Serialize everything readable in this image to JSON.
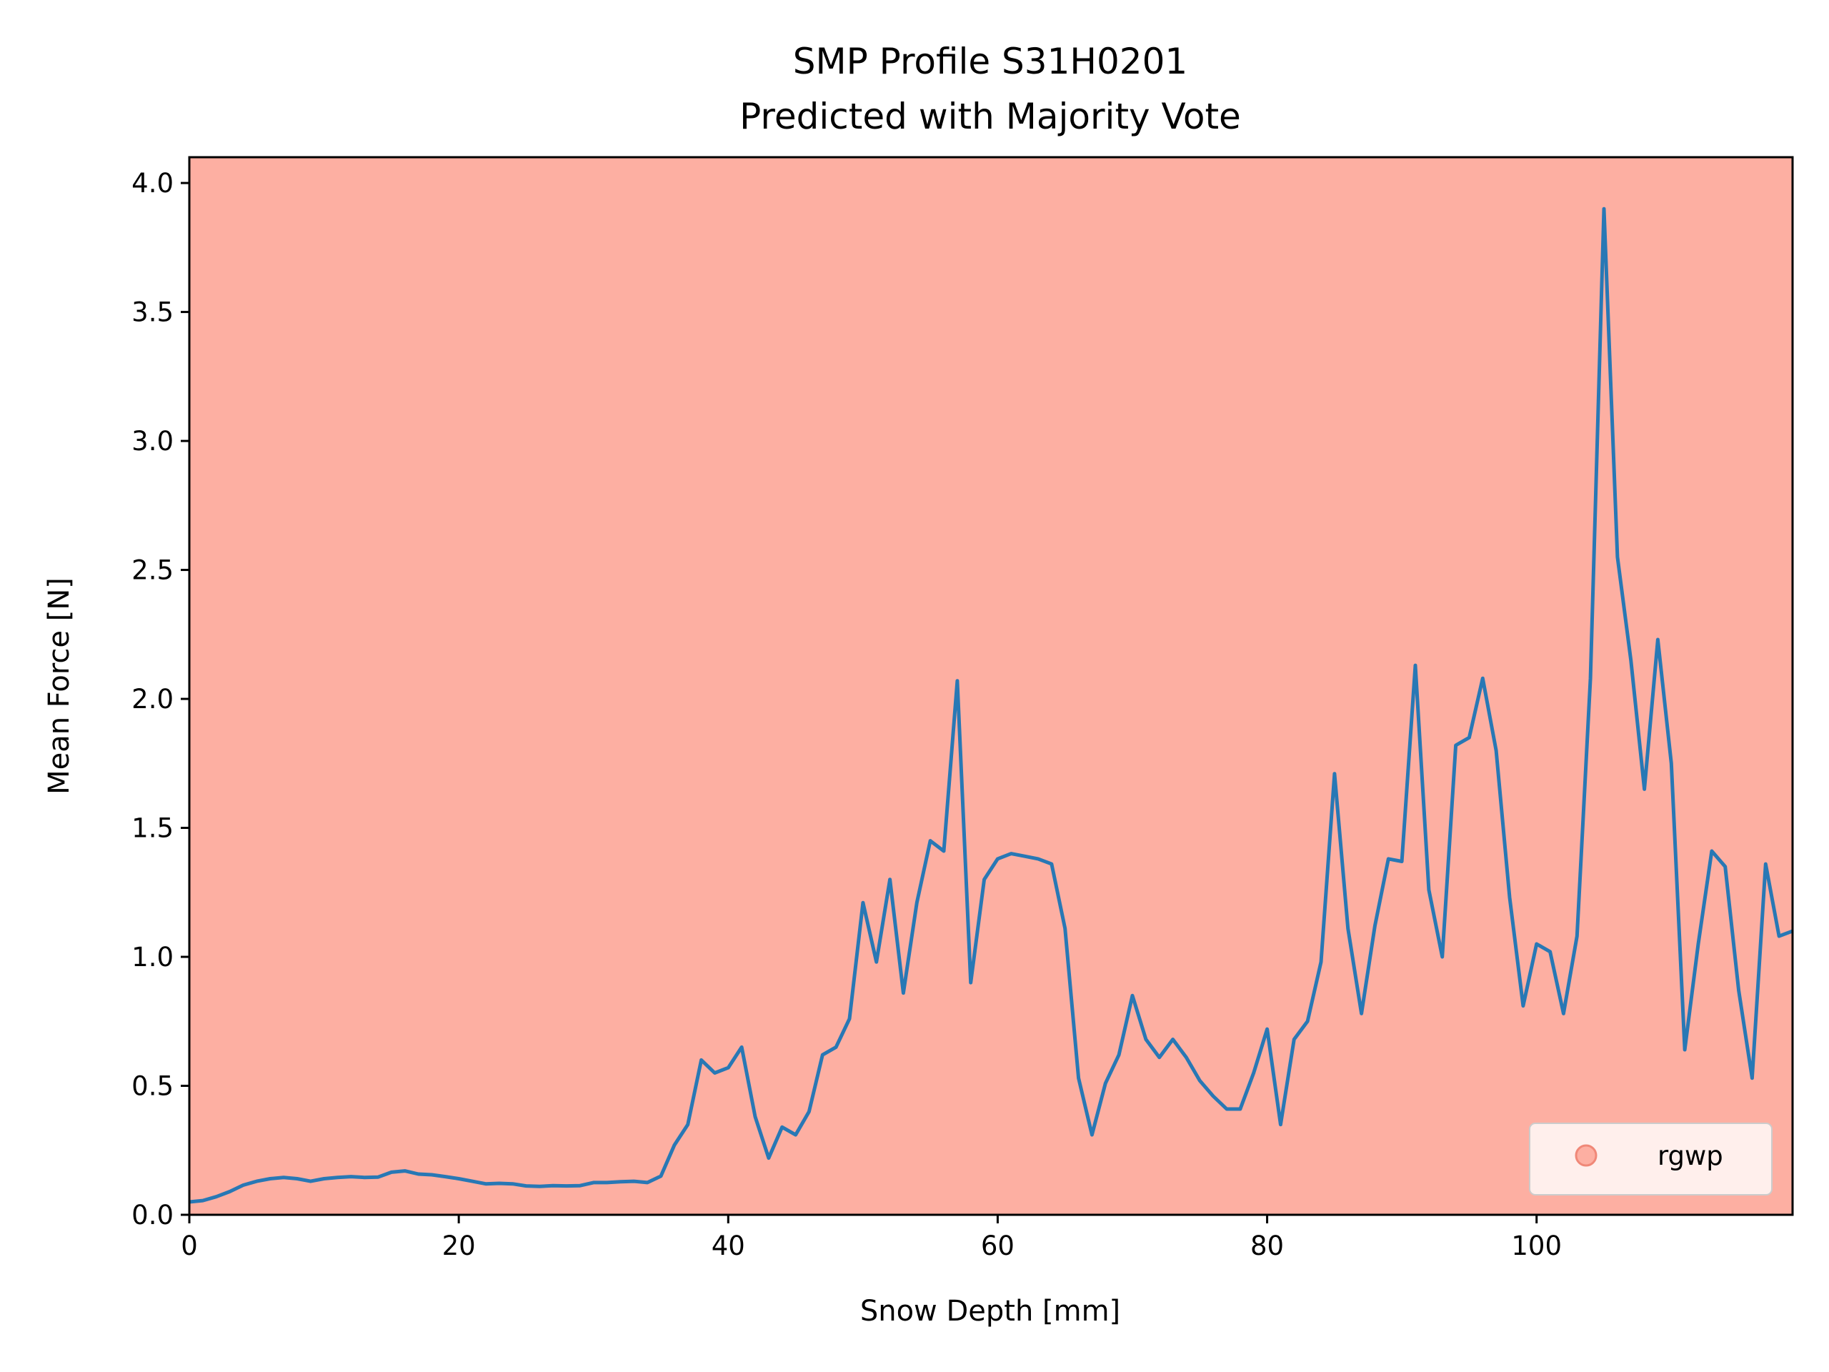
{
  "chart_data": {
    "type": "line",
    "title": "SMP Profile S31H0201",
    "subtitle": "Predicted with Majority Vote",
    "xlabel": "Snow Depth [mm]",
    "ylabel": "Mean Force [N]",
    "xlim": [
      0,
      119
    ],
    "ylim": [
      0,
      4.1
    ],
    "xticks": [
      0,
      20,
      40,
      60,
      80,
      100
    ],
    "xtick_labels": [
      "0",
      "20",
      "40",
      "60",
      "80",
      "100"
    ],
    "yticks": [
      0,
      0.5,
      1.0,
      1.5,
      2.0,
      2.5,
      3.0,
      3.5,
      4.0
    ],
    "ytick_labels": [
      "0.0",
      "0.5",
      "1.0",
      "1.5",
      "2.0",
      "2.5",
      "3.0",
      "3.5",
      "4.0"
    ],
    "grid": false,
    "background_fill": {
      "label": "rgwp",
      "color": "#fdafa2",
      "x_range": [
        0,
        119
      ]
    },
    "legend": {
      "placement": "lower-right",
      "entries": [
        {
          "label": "rgwp",
          "color": "#fdafa2",
          "marker": "circle"
        }
      ]
    },
    "series": [
      {
        "color": "#2878b5",
        "x": [
          0,
          1,
          2,
          3,
          4,
          5,
          6,
          7,
          8,
          9,
          10,
          11,
          12,
          13,
          14,
          15,
          16,
          17,
          18,
          19,
          20,
          21,
          22,
          23,
          24,
          25,
          26,
          27,
          28,
          29,
          30,
          31,
          32,
          33,
          34,
          35,
          36,
          37,
          38,
          39,
          40,
          41,
          42,
          43,
          44,
          45,
          46,
          47,
          48,
          49,
          50,
          51,
          52,
          53,
          54,
          55,
          56,
          57,
          58,
          59,
          60,
          61,
          62,
          63,
          64,
          65,
          66,
          67,
          68,
          69,
          70,
          71,
          72,
          73,
          74,
          75,
          76,
          77,
          78,
          79,
          80,
          81,
          82,
          83,
          84,
          85,
          86,
          87,
          88,
          89,
          90,
          91,
          92,
          93,
          94,
          95,
          96,
          97,
          98,
          99,
          100,
          101,
          102,
          103,
          104,
          105,
          106,
          107,
          108,
          109,
          110,
          111,
          112,
          113,
          114,
          115,
          116,
          117,
          118,
          119
        ],
        "y": [
          0.05,
          0.055,
          0.07,
          0.09,
          0.115,
          0.13,
          0.14,
          0.145,
          0.14,
          0.13,
          0.14,
          0.145,
          0.148,
          0.145,
          0.146,
          0.165,
          0.17,
          0.158,
          0.155,
          0.148,
          0.14,
          0.13,
          0.12,
          0.122,
          0.12,
          0.112,
          0.11,
          0.113,
          0.112,
          0.113,
          0.125,
          0.125,
          0.128,
          0.13,
          0.125,
          0.15,
          0.27,
          0.35,
          0.6,
          0.55,
          0.57,
          0.65,
          0.38,
          0.22,
          0.34,
          0.31,
          0.4,
          0.62,
          0.65,
          0.76,
          1.21,
          0.98,
          1.3,
          0.86,
          1.21,
          1.45,
          1.41,
          2.07,
          0.9,
          1.3,
          1.38,
          1.4,
          1.39,
          1.38,
          1.36,
          1.11,
          0.53,
          0.31,
          0.51,
          0.62,
          0.85,
          0.68,
          0.61,
          0.68,
          0.61,
          0.52,
          0.46,
          0.41,
          0.41,
          0.55,
          0.72,
          0.35,
          0.68,
          0.75,
          0.98,
          1.71,
          1.11,
          0.78,
          1.12,
          1.38,
          1.37,
          2.13,
          1.26,
          1.0,
          1.82,
          1.85,
          2.08,
          1.8,
          1.23,
          0.81,
          1.05,
          1.02,
          0.78,
          1.08,
          2.08,
          3.9,
          2.55,
          2.15,
          1.65,
          2.23,
          1.75,
          0.64,
          1.05,
          1.41,
          1.35,
          0.87,
          0.53,
          1.36,
          1.08,
          1.1
        ]
      }
    ]
  }
}
